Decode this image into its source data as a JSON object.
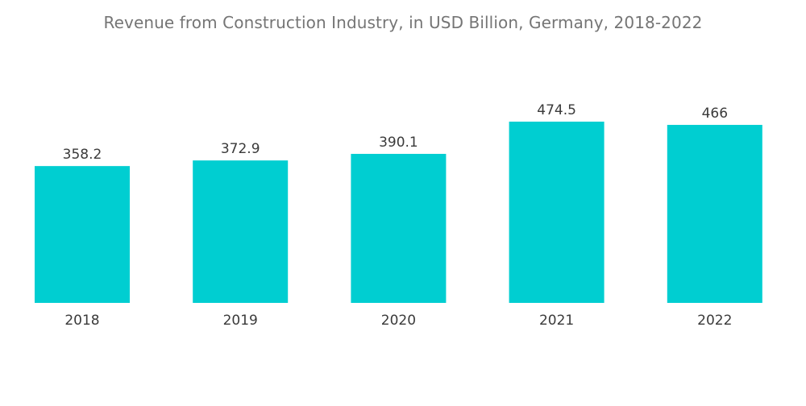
{
  "chart_data": {
    "type": "bar",
    "title": "Revenue from Construction Industry, in USD Billion, Germany, 2018-2022",
    "categories": [
      "2018",
      "2019",
      "2020",
      "2021",
      "2022"
    ],
    "values": [
      358.2,
      372.9,
      390.1,
      474.5,
      466
    ],
    "value_labels": [
      "358.2",
      "372.9",
      "390.1",
      "474.5",
      "466"
    ],
    "xlabel": "",
    "ylabel": "",
    "ylim": [
      0,
      474.5
    ],
    "grid": false,
    "legend": "none",
    "bar_color": "#00ced1"
  }
}
